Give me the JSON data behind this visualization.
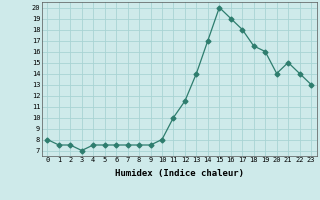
{
  "x": [
    0,
    1,
    2,
    3,
    4,
    5,
    6,
    7,
    8,
    9,
    10,
    11,
    12,
    13,
    14,
    15,
    16,
    17,
    18,
    19,
    20,
    21,
    22,
    23
  ],
  "y": [
    8.0,
    7.5,
    7.5,
    7.0,
    7.5,
    7.5,
    7.5,
    7.5,
    7.5,
    7.5,
    8.0,
    10.0,
    11.5,
    14.0,
    17.0,
    20.0,
    19.0,
    18.0,
    16.5,
    16.0,
    14.0,
    15.0,
    14.0,
    13.0
  ],
  "line_color": "#2e7d6e",
  "marker": "D",
  "marker_size": 2.5,
  "xlabel": "Humidex (Indice chaleur)",
  "xlim": [
    -0.5,
    23.5
  ],
  "ylim": [
    6.5,
    20.5
  ],
  "yticks": [
    7,
    8,
    9,
    10,
    11,
    12,
    13,
    14,
    15,
    16,
    17,
    18,
    19,
    20
  ],
  "xtick_labels": [
    "0",
    "1",
    "2",
    "3",
    "4",
    "5",
    "6",
    "7",
    "8",
    "9",
    "10",
    "11",
    "12",
    "13",
    "14",
    "15",
    "16",
    "17",
    "18",
    "19",
    "20",
    "21",
    "22",
    "23"
  ],
  "bg_color": "#ceeaea",
  "grid_color": "#a8d4d4"
}
